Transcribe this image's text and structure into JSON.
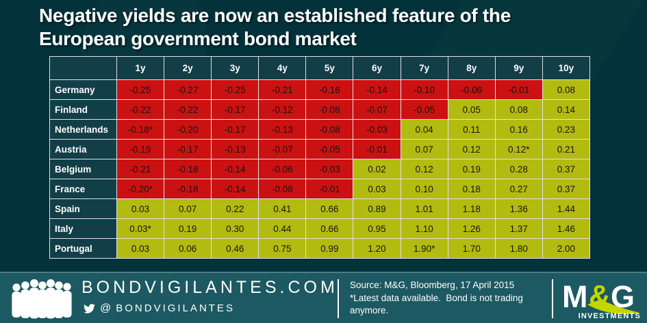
{
  "slide": {
    "title_line1": "Negative yields are now an established feature of the",
    "title_line2": "European government bond market"
  },
  "chart_data": {
    "type": "table",
    "title": "Negative yields are now an established feature of the European government bond market",
    "columns": [
      "1y",
      "2y",
      "3y",
      "4y",
      "5y",
      "6y",
      "7y",
      "8y",
      "9y",
      "10y"
    ],
    "rows": [
      {
        "label": "Germany",
        "values": [
          "-0.25",
          "-0.27",
          "-0.25",
          "-0.21",
          "-0.16",
          "-0.14",
          "-0.10",
          "-0.06",
          "-0.01",
          "0.08"
        ]
      },
      {
        "label": "Finland",
        "values": [
          "-0.22",
          "-0.22",
          "-0.17",
          "-0.12",
          "-0.08",
          "-0.07",
          "-0.05",
          "0.05",
          "0.08",
          "0.14"
        ]
      },
      {
        "label": "Netherlands",
        "values": [
          "-0.18*",
          "-0.20",
          "-0.17",
          "-0.13",
          "-0.08",
          "-0.03",
          "0.04",
          "0.11",
          "0.16",
          "0.23"
        ]
      },
      {
        "label": "Austria",
        "values": [
          "-0.19",
          "-0.17",
          "-0.13",
          "-0.07",
          "-0.05",
          "-0.01",
          "0.07",
          "0.12",
          "0.12*",
          "0.21"
        ]
      },
      {
        "label": "Belgium",
        "values": [
          "-0.21",
          "-0.18",
          "-0.14",
          "-0.06",
          "-0.03",
          "0.02",
          "0.12",
          "0.19",
          "0.28",
          "0.37"
        ]
      },
      {
        "label": "France",
        "values": [
          "-0.20*",
          "-0.18",
          "-0.14",
          "-0.08",
          "-0.01",
          "0.03",
          "0.10",
          "0.18",
          "0.27",
          "0.37"
        ]
      },
      {
        "label": "Spain",
        "values": [
          "0.03",
          "0.07",
          "0.22",
          "0.41",
          "0.66",
          "0.89",
          "1.01",
          "1.18",
          "1.36",
          "1.44"
        ]
      },
      {
        "label": "Italy",
        "values": [
          "0.03*",
          "0.19",
          "0.30",
          "0.44",
          "0.66",
          "0.95",
          "1.10",
          "1.26",
          "1.37",
          "1.46"
        ]
      },
      {
        "label": "Portugal",
        "values": [
          "0.03",
          "0.06",
          "0.46",
          "0.75",
          "0.99",
          "1.20",
          "1.90*",
          "1.70",
          "1.80",
          "2.00"
        ]
      }
    ],
    "cell_color_rule": "negative values shown on red, zero or positive values shown on lime green",
    "footnote": "*Latest data available. Bond is not trading anymore.",
    "source": "Source: M&G, Bloomberg, 17 April 2015"
  },
  "footer": {
    "site_name": "BONDVIGILANTES.COM",
    "twitter_at": "@",
    "twitter_handle": "BONDVIGILANTES",
    "source_line1": "Source: M&G, Bloomberg, 17 April 2015",
    "source_line2": "*Latest data available.  Bond is not trading anymore.",
    "logo": {
      "letter_m": "M",
      "ampersand": "&",
      "letter_g": "G",
      "subtitle": "INVESTMENTS"
    }
  },
  "colors": {
    "page_bg": "#03323a",
    "header_cell": "#123e47",
    "negative": "#cb1111",
    "positive": "#b2bb10",
    "cell_border": "#dfe3e3",
    "footer_bg": "#1d5962",
    "lime": "#c4d600",
    "text_light": "#ffffff"
  }
}
